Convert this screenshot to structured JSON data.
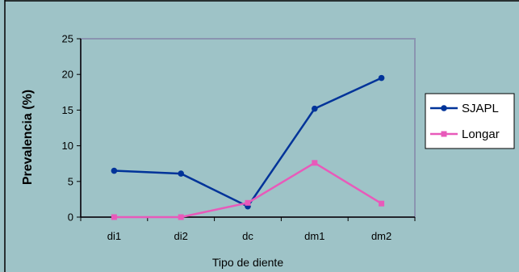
{
  "chart_data": {
    "type": "line",
    "categories": [
      "di1",
      "di2",
      "dc",
      "dm1",
      "dm2"
    ],
    "series": [
      {
        "name": "SJAPL",
        "values": [
          6.5,
          6.1,
          1.5,
          15.2,
          19.5
        ],
        "color": "#003399",
        "marker": "circle"
      },
      {
        "name": "Longar",
        "values": [
          0,
          0,
          2,
          7.6,
          1.9
        ],
        "color": "#e85aba",
        "marker": "square"
      }
    ],
    "xlabel": "Tipo de diente",
    "ylabel": "Prevalencia (%)",
    "ylim": [
      0,
      25
    ],
    "yticks": [
      0,
      5,
      10,
      15,
      20,
      25
    ],
    "grid": false,
    "legend": "right",
    "plot_background": "#9ec3c7",
    "plot_border_color": "#8a94b0"
  }
}
